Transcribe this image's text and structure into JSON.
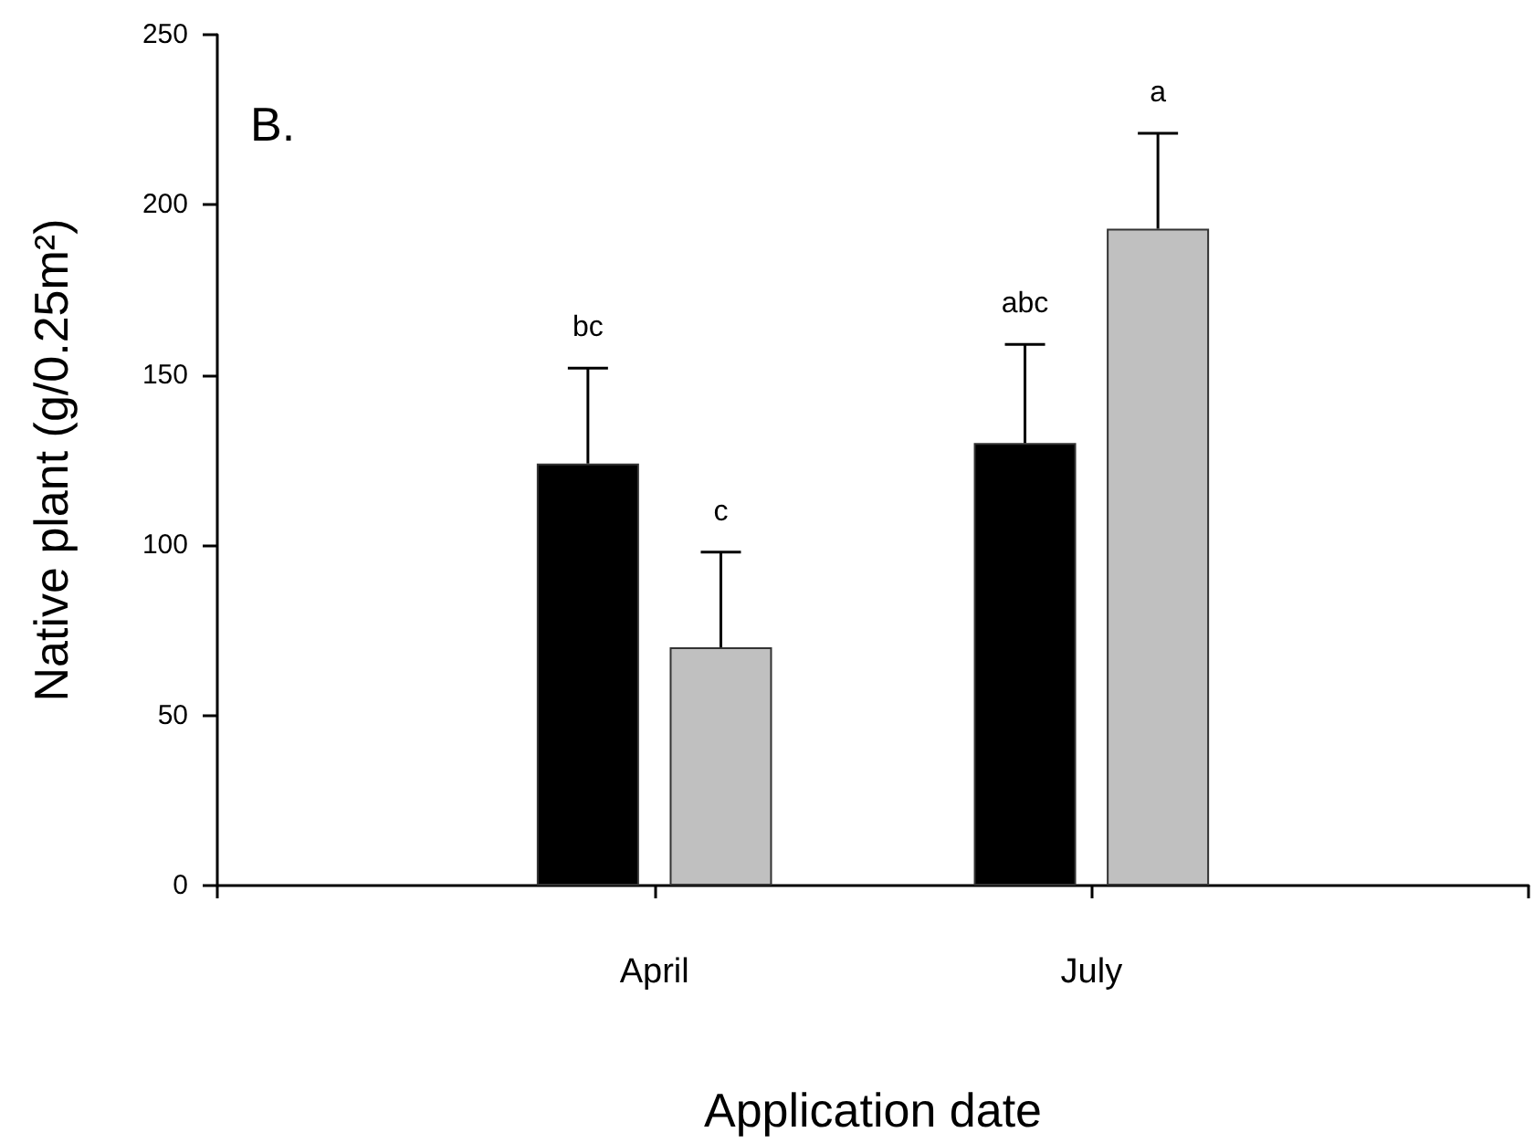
{
  "chart_data": {
    "type": "bar",
    "xlabel": "Application date",
    "ylabel": "Native plant (g/0.25m²)",
    "annotations": [
      "B.",
      "bc",
      "c",
      "abc",
      "a"
    ],
    "categories": [
      null,
      "April",
      "July",
      null
    ],
    "series": [
      {
        "color": "#000000",
        "values": [
          null,
          124,
          130,
          null
        ],
        "errors": [
          null,
          [
            124,
            152
          ],
          [
            130,
            159
          ],
          null
        ]
      },
      {
        "color": "#c0c0c0",
        "values": [
          null,
          70,
          193,
          null
        ],
        "errors": [
          null,
          [
            70,
            98
          ],
          [
            193,
            221
          ],
          null
        ]
      }
    ],
    "ylim": [
      0,
      250
    ],
    "yticks": [
      0,
      50,
      100,
      150,
      200,
      250
    ],
    "grid": false
  }
}
